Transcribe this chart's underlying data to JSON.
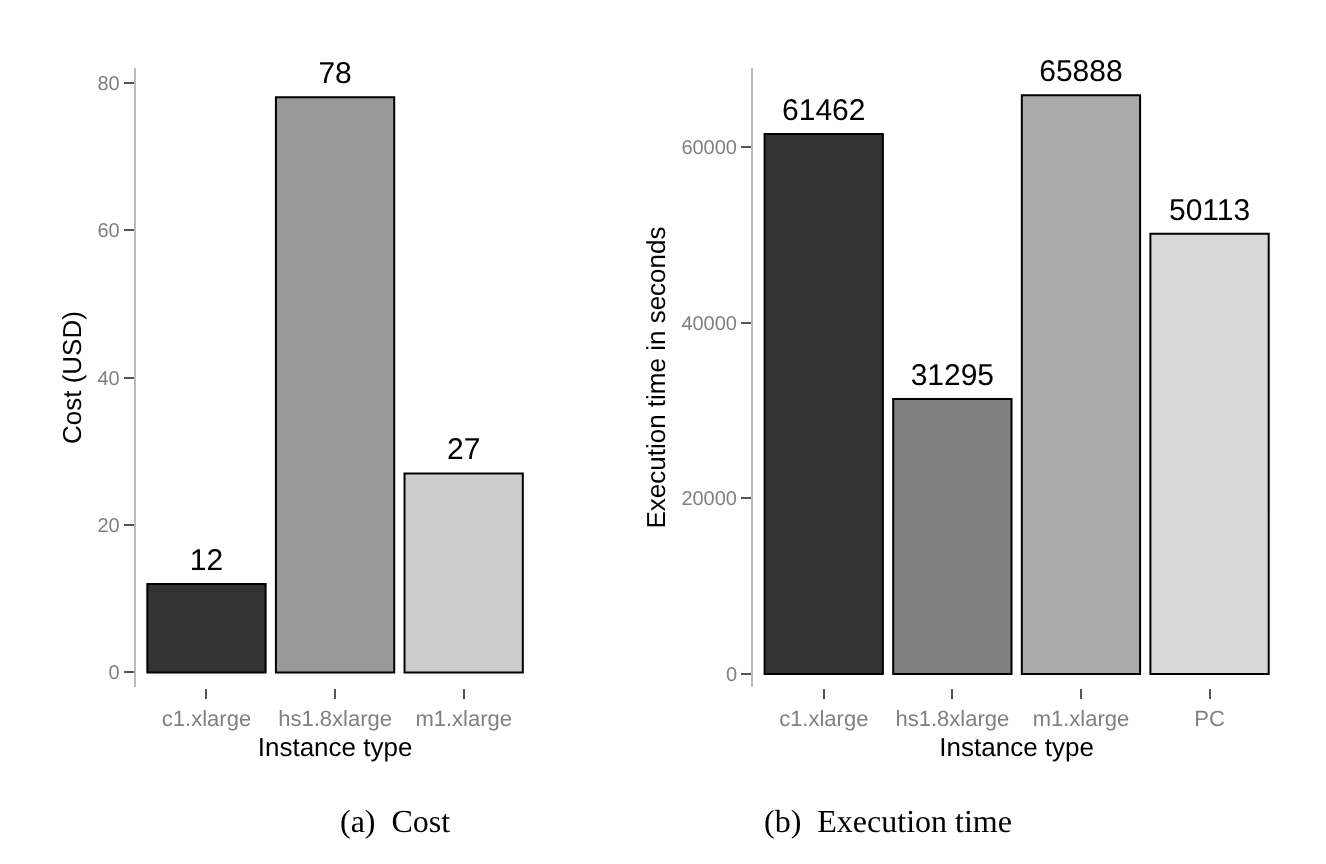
{
  "chart_data": [
    {
      "type": "bar",
      "xlabel": "Instance type",
      "ylabel": "Cost (USD)",
      "categories": [
        "c1.xlarge",
        "hs1.8xlarge",
        "m1.xlarge"
      ],
      "values": [
        12,
        78,
        27
      ],
      "colors": [
        "#333333",
        "#999999",
        "#cccccc"
      ],
      "ylim": [
        -2,
        82
      ],
      "yticks": [
        0,
        20,
        40,
        60,
        80
      ],
      "data_labels": true,
      "annotations": [
        "(a)  Cost"
      ]
    },
    {
      "type": "bar",
      "xlabel": "Instance type",
      "ylabel": "Execution time in seconds",
      "categories": [
        "c1.xlarge",
        "hs1.8xlarge",
        "m1.xlarge",
        "PC"
      ],
      "values": [
        61462,
        31295,
        65888,
        50113
      ],
      "colors": [
        "#333333",
        "#808080",
        "#aaaaaa",
        "#d9d9d9"
      ],
      "ylim": [
        -1500,
        69000
      ],
      "yticks": [
        0,
        20000,
        40000,
        60000
      ],
      "data_labels": true,
      "annotations": [
        "(b)  Execution time"
      ]
    }
  ]
}
